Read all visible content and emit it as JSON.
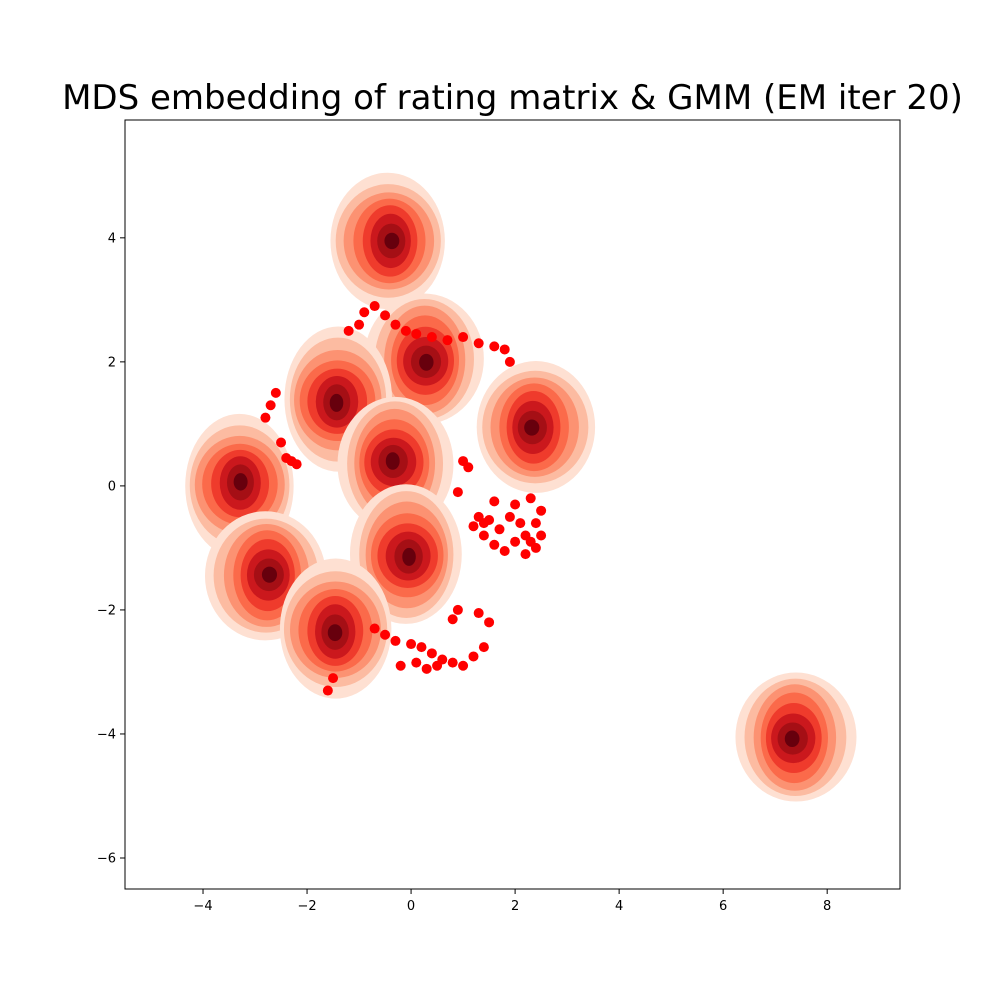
{
  "chart_data": {
    "type": "scatter",
    "title": "MDS embedding of rating matrix & GMM (EM iter 20)",
    "xlabel": "",
    "ylabel": "",
    "xlim": [
      -5.5,
      9.4
    ],
    "ylim": [
      -6.5,
      5.9
    ],
    "x_ticks": [
      -4,
      -2,
      0,
      2,
      4,
      6,
      8
    ],
    "x_tick_labels": [
      "−4",
      "−2",
      "0",
      "2",
      "4",
      "6",
      "8"
    ],
    "y_ticks": [
      -6,
      -4,
      -2,
      0,
      2,
      4
    ],
    "y_tick_labels": [
      "−6",
      "−4",
      "−2",
      "0",
      "2",
      "4"
    ],
    "grid": false,
    "colors": {
      "points": "#ff0000",
      "density_levels": [
        "#fee0d2",
        "#fcbba1",
        "#fc9272",
        "#fb6a4a",
        "#ef3b2c",
        "#cb181d",
        "#a50f15",
        "#67000d"
      ]
    },
    "series": [
      {
        "kind": "points",
        "x": [
          -0.9,
          -0.7,
          -0.5,
          -0.3,
          -0.1,
          0.1,
          0.4,
          0.7,
          1.0,
          1.3,
          -1.2,
          -1.0,
          1.6,
          1.8,
          1.9,
          -2.6,
          -2.7,
          -2.8,
          -2.5,
          -2.3,
          -2.2,
          -2.4,
          1.0,
          1.1,
          1.3,
          1.4,
          1.5,
          1.7,
          1.9,
          2.0,
          2.1,
          2.2,
          2.3,
          2.4,
          2.5,
          1.2,
          1.4,
          1.6,
          1.8,
          2.0,
          2.2,
          2.4,
          0.9,
          -0.7,
          -0.5,
          -0.3,
          0.0,
          0.2,
          0.4,
          0.6,
          0.8,
          1.0,
          1.2,
          1.4,
          -0.2,
          0.1,
          0.3,
          0.5,
          -1.6,
          -1.5,
          1.3,
          1.5,
          0.8,
          0.9,
          2.3,
          2.5,
          1.6
        ],
        "y": [
          2.8,
          2.9,
          2.75,
          2.6,
          2.5,
          2.45,
          2.4,
          2.35,
          2.4,
          2.3,
          2.5,
          2.6,
          2.25,
          2.2,
          2.0,
          1.5,
          1.3,
          1.1,
          0.7,
          0.4,
          0.35,
          0.45,
          0.4,
          0.3,
          -0.5,
          -0.6,
          -0.55,
          -0.7,
          -0.5,
          -0.3,
          -0.6,
          -0.8,
          -0.9,
          -1.0,
          -0.8,
          -0.65,
          -0.8,
          -0.95,
          -1.05,
          -0.9,
          -1.1,
          -0.6,
          -0.1,
          -2.3,
          -2.4,
          -2.5,
          -2.55,
          -2.6,
          -2.7,
          -2.8,
          -2.85,
          -2.9,
          -2.75,
          -2.6,
          -2.9,
          -2.85,
          -2.95,
          -2.9,
          -3.3,
          -3.1,
          -2.05,
          -2.2,
          -2.15,
          -2.0,
          -0.2,
          -0.4,
          -0.25
        ]
      },
      {
        "kind": "density",
        "x": [
          -0.45,
          0.25,
          -1.4,
          2.4,
          -0.3,
          -3.3,
          -2.8,
          -0.1,
          -1.45,
          7.4
        ],
        "y": [
          3.95,
          2.05,
          1.4,
          0.95,
          0.35,
          0.0,
          -1.45,
          -1.1,
          -2.3,
          -4.05
        ]
      }
    ]
  }
}
